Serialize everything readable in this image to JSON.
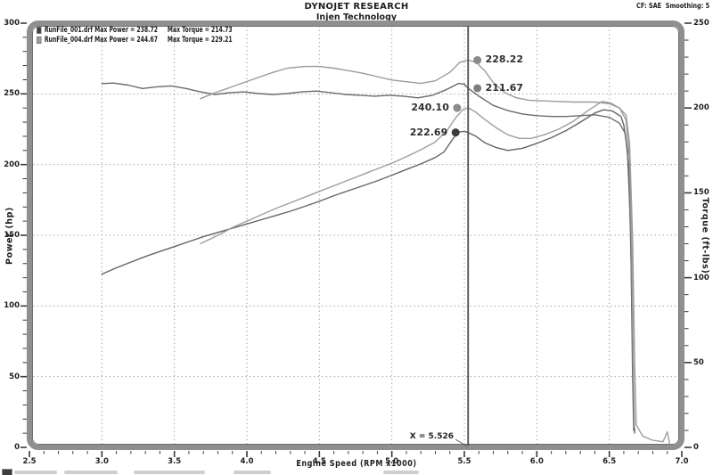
{
  "header": {
    "title": "DYNOJET RESEARCH",
    "subtitle": "Injen Technology",
    "correction_note": "CF: SAE  Smoothing: 5"
  },
  "legend": {
    "rows": [
      {
        "file": "RunFile_001.drf",
        "max_power_label": "Max Power = 238.72",
        "max_torque_label": "Max Torque = 214.73",
        "swatch": "#3f3f3f"
      },
      {
        "file": "RunFile_004.drf",
        "max_power_label": "Max Power = 244.67",
        "max_torque_label": "Max Torque = 229.21",
        "swatch": "#9c9c9c"
      }
    ]
  },
  "chart_data": {
    "type": "line",
    "title": "DYNOJET RESEARCH",
    "subtitle": "Injen Technology",
    "xlabel": "Engine Speed (RPM x1000)",
    "ylabel_left": "Power (hp)",
    "ylabel_right": "Torque (ft-lbs)",
    "x_range": [
      2.5,
      7.0
    ],
    "y_left_range": [
      0,
      300
    ],
    "y_right_range": [
      0,
      250
    ],
    "x_tick_values": [
      2.5,
      3.0,
      3.5,
      4.0,
      4.5,
      5.0,
      5.5,
      6.0,
      6.5,
      7.0
    ],
    "x_tick_labels": [
      "2.5",
      "3.0",
      "3.5",
      "4.0",
      "4.5",
      "5.0",
      "5.5",
      "6.0",
      "6.5",
      "7.0"
    ],
    "x_minor_step": 0.1,
    "y_left_tick_values": [
      300,
      250,
      200,
      150,
      100,
      50,
      0
    ],
    "y_left_tick_labels": [
      "300",
      "250",
      "200",
      "150",
      "100",
      "50",
      "0"
    ],
    "y_right_tick_values": [
      250,
      200,
      150,
      100,
      50,
      0
    ],
    "y_right_tick_labels": [
      "250",
      "200",
      "150",
      "100",
      "50",
      "0"
    ],
    "y_minor_step": 10,
    "grid": {
      "style": "dotted",
      "horizontal_at": [
        250,
        200,
        150,
        100,
        50
      ],
      "vertical_at": [
        3.0,
        3.5,
        4.0,
        4.5,
        5.0,
        5.5,
        6.0,
        6.5
      ]
    },
    "cursor": {
      "x": 5.526,
      "label": "X = 5.526"
    },
    "series": [
      {
        "id": "power_001",
        "name": "RunFile_001.drf Power",
        "axis": "power",
        "color": "#646464",
        "points": [
          [
            3.0,
            122.5
          ],
          [
            3.1,
            127
          ],
          [
            3.2,
            131
          ],
          [
            3.3,
            135
          ],
          [
            3.4,
            138.5
          ],
          [
            3.5,
            142
          ],
          [
            3.6,
            145.5
          ],
          [
            3.7,
            149
          ],
          [
            3.8,
            152
          ],
          [
            3.9,
            155
          ],
          [
            4.0,
            158
          ],
          [
            4.1,
            161
          ],
          [
            4.2,
            164
          ],
          [
            4.3,
            167
          ],
          [
            4.4,
            170.5
          ],
          [
            4.5,
            174
          ],
          [
            4.6,
            178
          ],
          [
            4.7,
            181.5
          ],
          [
            4.8,
            185
          ],
          [
            4.9,
            188.5
          ],
          [
            5.0,
            192.5
          ],
          [
            5.1,
            196.5
          ],
          [
            5.2,
            200.5
          ],
          [
            5.3,
            205
          ],
          [
            5.36,
            209
          ],
          [
            5.42,
            218
          ],
          [
            5.46,
            223
          ],
          [
            5.5,
            223.5
          ],
          [
            5.526,
            222.69
          ],
          [
            5.58,
            220
          ],
          [
            5.64,
            215.5
          ],
          [
            5.72,
            212
          ],
          [
            5.8,
            210
          ],
          [
            5.9,
            211.5
          ],
          [
            6.0,
            215
          ],
          [
            6.1,
            219
          ],
          [
            6.2,
            224
          ],
          [
            6.3,
            230
          ],
          [
            6.4,
            236.5
          ],
          [
            6.46,
            238.72
          ],
          [
            6.52,
            238
          ],
          [
            6.58,
            234
          ],
          [
            6.6,
            228
          ],
          [
            6.625,
            210
          ],
          [
            6.645,
            160
          ],
          [
            6.66,
            80
          ],
          [
            6.67,
            25
          ],
          [
            6.675,
            10
          ]
        ]
      },
      {
        "id": "power_004",
        "name": "RunFile_004.drf Power",
        "axis": "power",
        "color": "#9e9e9e",
        "points": [
          [
            3.68,
            144
          ],
          [
            3.74,
            147
          ],
          [
            3.82,
            151
          ],
          [
            3.9,
            155.5
          ],
          [
            4.0,
            160
          ],
          [
            4.1,
            164.5
          ],
          [
            4.2,
            169
          ],
          [
            4.3,
            173
          ],
          [
            4.4,
            177
          ],
          [
            4.5,
            181
          ],
          [
            4.6,
            185
          ],
          [
            4.7,
            189
          ],
          [
            4.8,
            193
          ],
          [
            4.9,
            197
          ],
          [
            5.0,
            201
          ],
          [
            5.1,
            205.5
          ],
          [
            5.2,
            210.5
          ],
          [
            5.3,
            216
          ],
          [
            5.38,
            224
          ],
          [
            5.44,
            233
          ],
          [
            5.49,
            239
          ],
          [
            5.526,
            240.1
          ],
          [
            5.58,
            237
          ],
          [
            5.64,
            232
          ],
          [
            5.72,
            226
          ],
          [
            5.8,
            221
          ],
          [
            5.88,
            218.5
          ],
          [
            5.96,
            218.5
          ],
          [
            6.05,
            221
          ],
          [
            6.15,
            225
          ],
          [
            6.25,
            230.5
          ],
          [
            6.35,
            238
          ],
          [
            6.45,
            244.67
          ],
          [
            6.51,
            243.5
          ],
          [
            6.57,
            240
          ],
          [
            6.615,
            235
          ],
          [
            6.64,
            215
          ],
          [
            6.66,
            150
          ],
          [
            6.675,
            60
          ],
          [
            6.685,
            16
          ],
          [
            6.73,
            8
          ],
          [
            6.8,
            5
          ],
          [
            6.87,
            4
          ],
          [
            6.9,
            11
          ],
          [
            6.915,
            3
          ]
        ]
      },
      {
        "id": "torque_001",
        "name": "RunFile_001.drf Torque",
        "axis": "torque",
        "color": "#6b6b6b",
        "points": [
          [
            3.0,
            214.4
          ],
          [
            3.08,
            214.73
          ],
          [
            3.18,
            213.5
          ],
          [
            3.28,
            211.5
          ],
          [
            3.38,
            212.5
          ],
          [
            3.48,
            213
          ],
          [
            3.58,
            211.5
          ],
          [
            3.68,
            209.5
          ],
          [
            3.78,
            208
          ],
          [
            3.88,
            209
          ],
          [
            3.98,
            209.5
          ],
          [
            4.08,
            208.5
          ],
          [
            4.18,
            208
          ],
          [
            4.28,
            208.5
          ],
          [
            4.38,
            209.5
          ],
          [
            4.48,
            210
          ],
          [
            4.58,
            209
          ],
          [
            4.68,
            208
          ],
          [
            4.78,
            207.5
          ],
          [
            4.88,
            207
          ],
          [
            4.98,
            207.5
          ],
          [
            5.08,
            207
          ],
          [
            5.18,
            206
          ],
          [
            5.28,
            207.5
          ],
          [
            5.38,
            211
          ],
          [
            5.46,
            214.5
          ],
          [
            5.5,
            214
          ],
          [
            5.526,
            211.67
          ],
          [
            5.6,
            207
          ],
          [
            5.7,
            201.5
          ],
          [
            5.8,
            198.5
          ],
          [
            5.9,
            196.5
          ],
          [
            6.0,
            195.5
          ],
          [
            6.1,
            195
          ],
          [
            6.2,
            195
          ],
          [
            6.3,
            195.5
          ],
          [
            6.4,
            196
          ],
          [
            6.5,
            194.5
          ],
          [
            6.57,
            191
          ],
          [
            6.61,
            185
          ],
          [
            6.635,
            165
          ],
          [
            6.65,
            110
          ],
          [
            6.66,
            45
          ],
          [
            6.668,
            10
          ]
        ]
      },
      {
        "id": "torque_004",
        "name": "RunFile_004.drf Torque",
        "axis": "torque",
        "color": "#9b9b9b",
        "points": [
          [
            3.68,
            205.5
          ],
          [
            3.78,
            209
          ],
          [
            3.88,
            212
          ],
          [
            3.98,
            215
          ],
          [
            4.08,
            218
          ],
          [
            4.18,
            221
          ],
          [
            4.28,
            223.5
          ],
          [
            4.4,
            224.5
          ],
          [
            4.5,
            224.5
          ],
          [
            4.6,
            223.5
          ],
          [
            4.7,
            222
          ],
          [
            4.8,
            220.5
          ],
          [
            4.9,
            218.5
          ],
          [
            5.0,
            216.5
          ],
          [
            5.1,
            215.5
          ],
          [
            5.2,
            214.5
          ],
          [
            5.3,
            216
          ],
          [
            5.4,
            221
          ],
          [
            5.47,
            227
          ],
          [
            5.526,
            228.22
          ],
          [
            5.58,
            227
          ],
          [
            5.64,
            222
          ],
          [
            5.7,
            215
          ],
          [
            5.78,
            209
          ],
          [
            5.86,
            206
          ],
          [
            5.95,
            204.5
          ],
          [
            6.1,
            204
          ],
          [
            6.25,
            203.5
          ],
          [
            6.4,
            203.5
          ],
          [
            6.5,
            202.5
          ],
          [
            6.57,
            200
          ],
          [
            6.615,
            193
          ],
          [
            6.64,
            170
          ],
          [
            6.655,
            115
          ],
          [
            6.665,
            50
          ],
          [
            6.673,
            12
          ]
        ]
      }
    ],
    "markers": [
      {
        "label": "228.22",
        "rpm": 5.59,
        "value": 228.22,
        "axis": "torque",
        "series": "torque_004",
        "label_side": "right",
        "color": "#898989"
      },
      {
        "label": "211.67",
        "rpm": 5.59,
        "value": 211.67,
        "axis": "torque",
        "series": "torque_001",
        "label_side": "right",
        "color": "#7d7d7d"
      },
      {
        "label": "240.10",
        "rpm": 5.45,
        "value": 240.1,
        "axis": "power",
        "series": "power_004",
        "label_side": "left",
        "color": "#8c8c8c"
      },
      {
        "label": "222.69",
        "rpm": 5.44,
        "value": 222.69,
        "axis": "power",
        "series": "power_001",
        "label_side": "left",
        "color": "#3b3b3b"
      }
    ],
    "legend_entries": [
      {
        "file": "RunFile_001.drf",
        "max_power": 238.72,
        "max_torque": 214.73
      },
      {
        "file": "RunFile_004.drf",
        "max_power": 244.67,
        "max_torque": 229.21
      }
    ]
  }
}
